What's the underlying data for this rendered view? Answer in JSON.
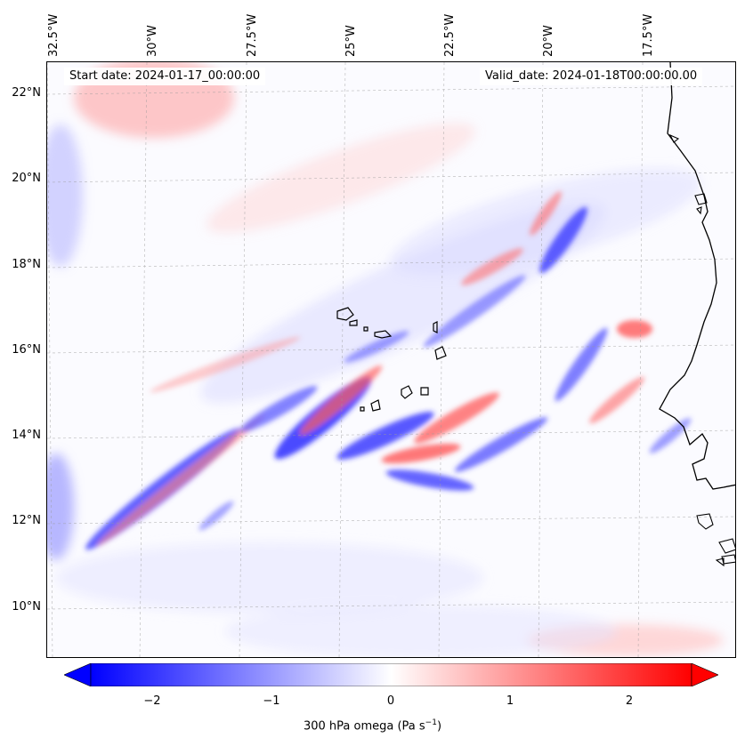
{
  "map": {
    "start_date": "Start date: 2024-01-17_00:00:00",
    "valid_date": "Valid_date: 2024-01-18T00:00:00.00",
    "lon_labels": [
      "32.5°W",
      "30°W",
      "27.5°W",
      "25°W",
      "22.5°W",
      "20°W",
      "17.5°W"
    ],
    "lat_labels": [
      "22°N",
      "20°N",
      "18°N",
      "16°N",
      "14°N",
      "12°N",
      "10°N"
    ],
    "field": "300 hPa omega",
    "colors": {
      "negative": "#0000ff",
      "zero": "#ffffff",
      "positive": "#ff0000",
      "coast": "#000000"
    }
  },
  "colorbar": {
    "ticks": [
      "−2",
      "−1",
      "0",
      "1",
      "2"
    ],
    "label_main": "300 hPa omega (Pa s",
    "label_exp": "−1",
    "label_close": ")",
    "range": [
      -2.7,
      2.7
    ]
  }
}
